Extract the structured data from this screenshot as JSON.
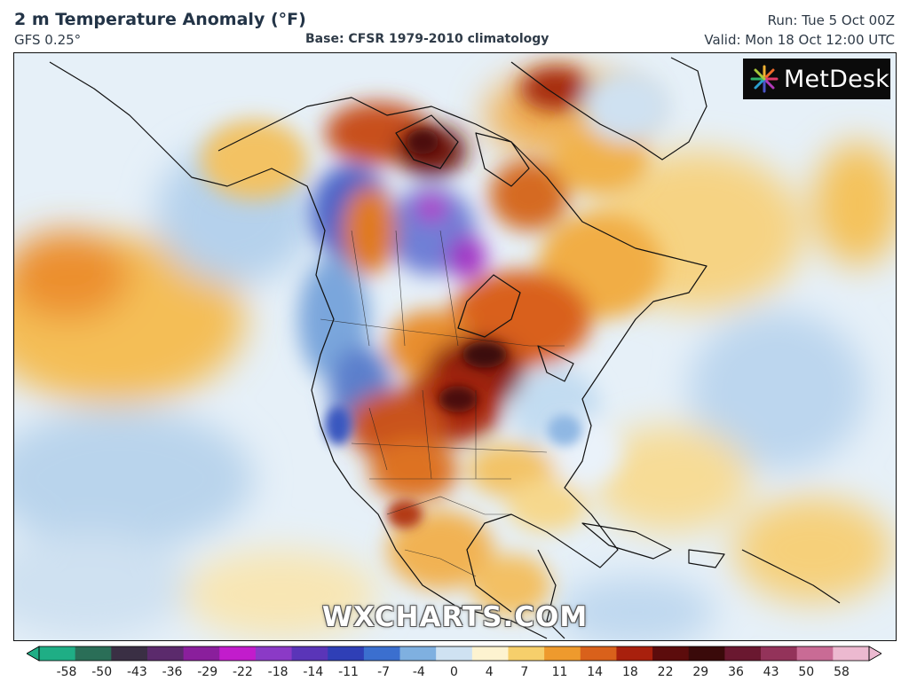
{
  "header": {
    "title": "2 m Temperature Anomaly (°F)",
    "model": "GFS 0.25°",
    "base": "Base: CFSR 1979-2010 climatology",
    "run": "Run: Tue 5 Oct 00Z",
    "valid": "Valid: Mon 18 Oct 12:00 UTC"
  },
  "logo": {
    "text": "MetDesk",
    "icon": "starburst-icon"
  },
  "watermark": "WXCHARTS.COM",
  "colorbar": {
    "ticks": [
      "-58",
      "-50",
      "-43",
      "-36",
      "-29",
      "-22",
      "-18",
      "-14",
      "-11",
      "-7",
      "-4",
      "0",
      "4",
      "7",
      "11",
      "14",
      "18",
      "22",
      "29",
      "36",
      "43",
      "50",
      "58"
    ],
    "colors": [
      "#1fae85",
      "#2a6e57",
      "#3a2f44",
      "#5b2a6c",
      "#8a1f9c",
      "#c21ccc",
      "#8b3ac6",
      "#5a35b8",
      "#2f3fb6",
      "#3b6fcf",
      "#7fb0e0",
      "#cfe2f2",
      "#fdf3d0",
      "#f6cf6b",
      "#ee9a2d",
      "#d9611b",
      "#a8200d",
      "#5c0c0c",
      "#3a0a0a",
      "#6a1830",
      "#93335a",
      "#c96b95",
      "#ecb9d0"
    ]
  }
}
